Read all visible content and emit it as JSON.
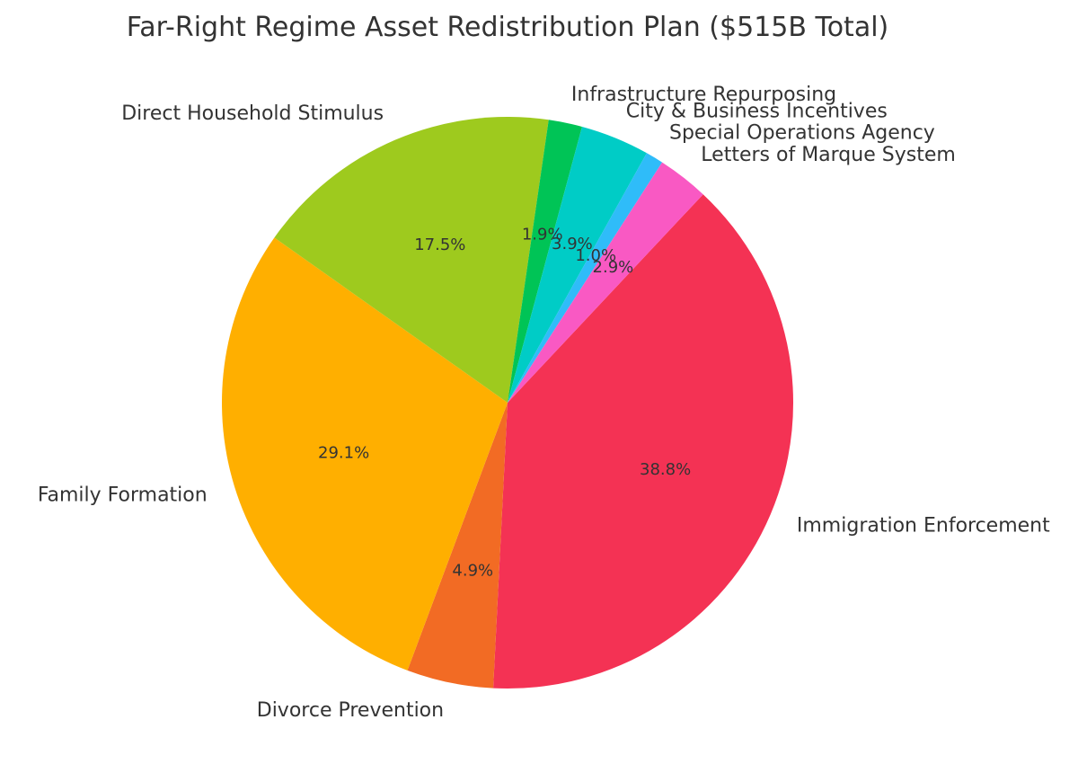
{
  "chart_data": {
    "type": "pie",
    "title": "Far-Right Regime Asset Redistribution Plan ($515B Total)",
    "slices": [
      {
        "label": "Immigration Enforcement",
        "value": 38.8,
        "pct_label": "38.8%",
        "color": "#f43254"
      },
      {
        "label": "Divorce Prevention",
        "value": 4.9,
        "pct_label": "4.9%",
        "color": "#f26b24"
      },
      {
        "label": "Family Formation",
        "value": 29.1,
        "pct_label": "29.1%",
        "color": "#ffaf00"
      },
      {
        "label": "Direct Household Stimulus",
        "value": 17.5,
        "pct_label": "17.5%",
        "color": "#9eca1e"
      },
      {
        "label": "Infrastructure Repurposing",
        "value": 1.9,
        "pct_label": "1.9%",
        "color": "#00c456"
      },
      {
        "label": "City & Business Incentives",
        "value": 3.9,
        "pct_label": "3.9%",
        "color": "#00ccc6"
      },
      {
        "label": "Special Operations Agency",
        "value": 1.0,
        "pct_label": "1.0%",
        "color": "#2fbcf9"
      },
      {
        "label": "Letters of Marque System",
        "value": 2.9,
        "pct_label": "2.9%",
        "color": "#f959c3"
      }
    ]
  }
}
